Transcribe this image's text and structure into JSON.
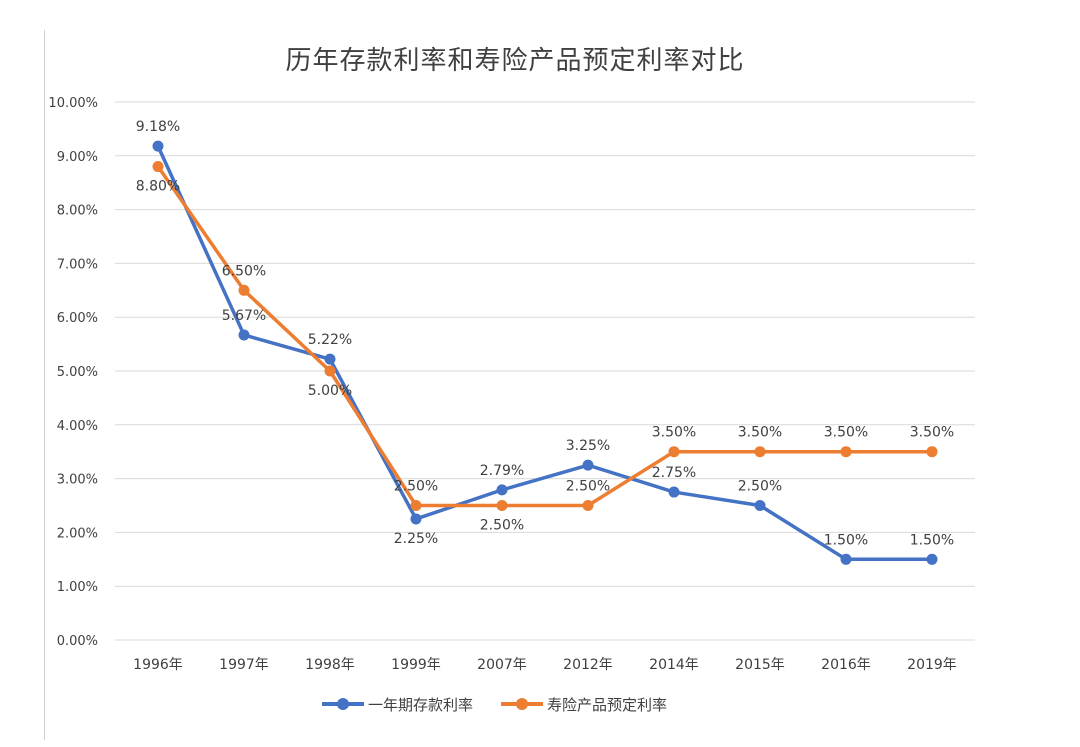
{
  "colors": {
    "series_0": "#4472C4",
    "series_1": "#ED7D31",
    "grid": "#d9d9d9",
    "text": "#404040"
  },
  "chart_data": {
    "type": "line",
    "title": "历年存款利率和寿险产品预定利率对比",
    "xlabel": "",
    "ylabel": "",
    "ylim": [
      0,
      10
    ],
    "yticks": [
      "0.00%",
      "1.00%",
      "2.00%",
      "3.00%",
      "4.00%",
      "5.00%",
      "6.00%",
      "7.00%",
      "8.00%",
      "9.00%",
      "10.00%"
    ],
    "grid": true,
    "legend_position": "bottom",
    "categories": [
      "1996年",
      "1997年",
      "1998年",
      "1999年",
      "2007年",
      "2012年",
      "2014年",
      "2015年",
      "2016年",
      "2019年"
    ],
    "series": [
      {
        "name": "一年期存款利率",
        "values": [
          9.18,
          5.67,
          5.22,
          2.25,
          2.79,
          3.25,
          2.75,
          2.5,
          1.5,
          1.5
        ],
        "labels": [
          "9.18%",
          "5.67%",
          "5.22%",
          "2.25%",
          "2.79%",
          "3.25%",
          "2.75%",
          "2.50%",
          "1.50%",
          "1.50%"
        ]
      },
      {
        "name": "寿险产品预定利率",
        "values": [
          8.8,
          6.5,
          5.0,
          2.5,
          2.5,
          2.5,
          3.5,
          3.5,
          3.5,
          3.5
        ],
        "labels": [
          "8.80%",
          "6.50%",
          "5.00%",
          "2.50%",
          "2.50%",
          "2.50%",
          "3.50%",
          "3.50%",
          "3.50%",
          "3.50%"
        ]
      }
    ]
  }
}
